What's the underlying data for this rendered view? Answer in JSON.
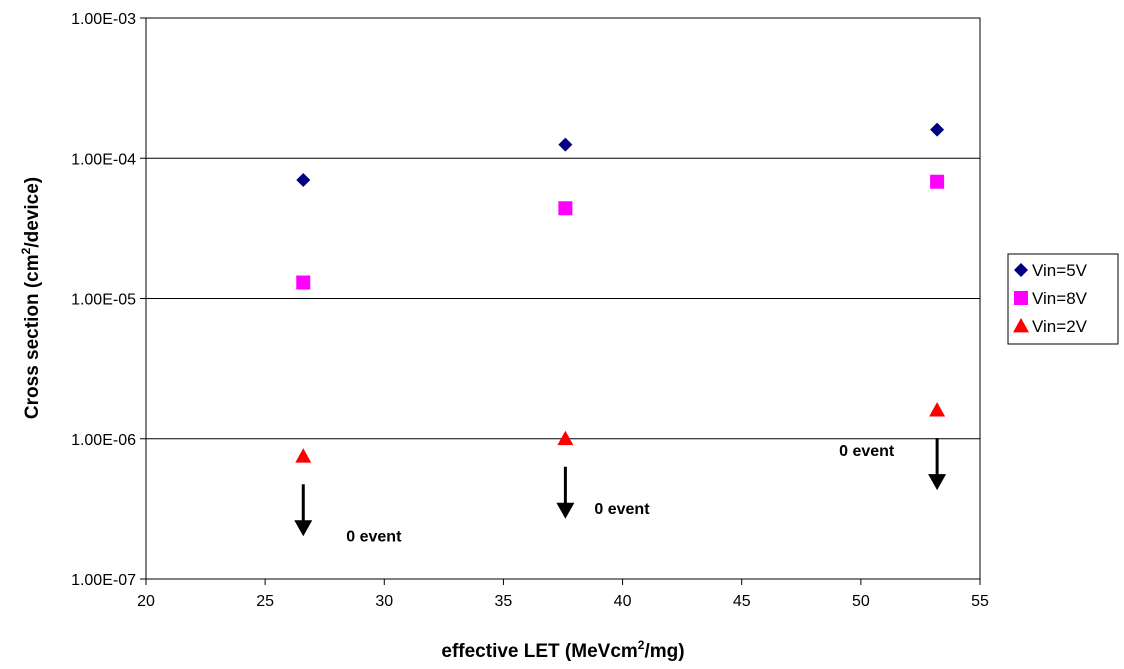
{
  "chart_data": {
    "type": "scatter",
    "title": "",
    "xlabel": {
      "prefix": "effective LET (MeVcm",
      "sup": "2",
      "suffix": "/mg)"
    },
    "ylabel": {
      "prefix": "Cross section (cm",
      "sup": "2",
      "suffix": "/device)"
    },
    "xlim": [
      20,
      55
    ],
    "ylim": [
      1e-07,
      0.001
    ],
    "y_scale": "log",
    "x_ticks": [
      "20",
      "25",
      "30",
      "35",
      "40",
      "45",
      "50",
      "55"
    ],
    "y_ticks": [
      "1.00E-07",
      "1.00E-06",
      "1.00E-05",
      "1.00E-04",
      "1.00E-03"
    ],
    "grid": "horizontal major lines",
    "legend_position": "right",
    "series": [
      {
        "name": "Vin=5V",
        "marker": "diamond",
        "color": "#000080",
        "points": [
          {
            "x": 26.6,
            "y": 7e-05
          },
          {
            "x": 37.6,
            "y": 0.000125
          },
          {
            "x": 53.2,
            "y": 0.00016
          }
        ]
      },
      {
        "name": "Vin=8V",
        "marker": "square",
        "color": "#ff00ff",
        "points": [
          {
            "x": 26.6,
            "y": 1.3e-05
          },
          {
            "x": 37.6,
            "y": 4.4e-05
          },
          {
            "x": 53.2,
            "y": 6.8e-05
          }
        ]
      },
      {
        "name": "Vin=2V",
        "marker": "triangle",
        "color": "#ff0000",
        "points": [
          {
            "x": 26.6,
            "y": 7.5e-07
          },
          {
            "x": 37.6,
            "y": 1e-06
          },
          {
            "x": 53.2,
            "y": 1.6e-06
          }
        ]
      }
    ],
    "annotations": [
      {
        "text": "0 event",
        "x": 26.6
      },
      {
        "text": "0 event",
        "x": 37.6
      },
      {
        "text": "0 event",
        "x": 53.2
      }
    ]
  }
}
